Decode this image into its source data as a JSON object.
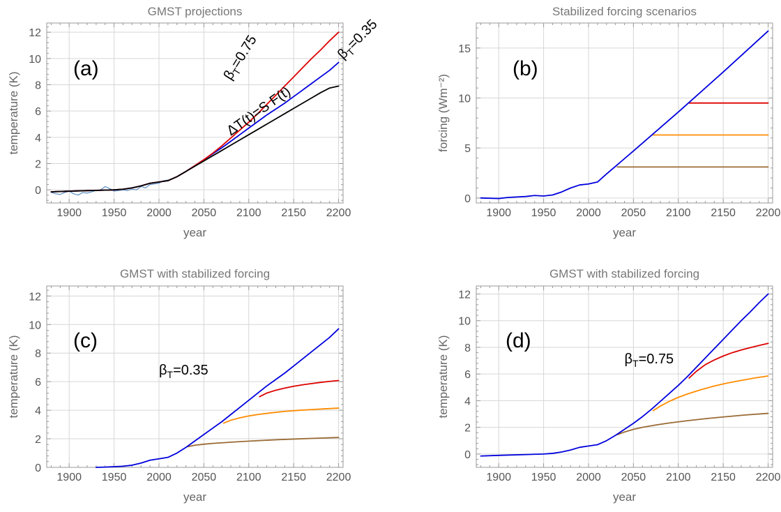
{
  "chart_data": [
    {
      "id": "a",
      "type": "line",
      "title": "GMST projections",
      "panel_label": "(a)",
      "xlabel": "year",
      "ylabel": "temperature (K)",
      "xlim": [
        1875,
        2205
      ],
      "ylim": [
        -1,
        12.7
      ],
      "xticks": [
        1900,
        1950,
        2000,
        2050,
        2100,
        2150,
        2200
      ],
      "yticks": [
        0,
        2,
        4,
        6,
        8,
        10,
        12
      ],
      "grid": true,
      "series": [
        {
          "id": "obs",
          "color": "#5b8fc4",
          "width": 1.2,
          "observed": true,
          "x": [
            1880,
            1885,
            1890,
            1895,
            1900,
            1905,
            1910,
            1915,
            1920,
            1925,
            1930,
            1935,
            1940,
            1945,
            1950,
            1955,
            1960,
            1965,
            1970,
            1975,
            1980,
            1985,
            1990,
            1995,
            2000,
            2005,
            2010
          ],
          "y": [
            -0.2,
            -0.3,
            -0.35,
            -0.2,
            -0.1,
            -0.3,
            -0.4,
            -0.2,
            -0.25,
            -0.15,
            -0.05,
            0.0,
            0.25,
            0.1,
            -0.1,
            -0.05,
            0.0,
            -0.05,
            0.05,
            0.0,
            0.25,
            0.15,
            0.4,
            0.45,
            0.5,
            0.7,
            0.75
          ]
        },
        {
          "id": "beta035",
          "color": "#0000dd",
          "width": 1.8,
          "x": [
            1880,
            1900,
            1950,
            1960,
            1970,
            1980,
            1990,
            2000,
            2010,
            2020,
            2030,
            2040,
            2050,
            2060,
            2070,
            2080,
            2090,
            2100,
            2110,
            2120,
            2130,
            2140,
            2150,
            2160,
            2170,
            2180,
            2190,
            2200
          ],
          "y": [
            -0.15,
            -0.1,
            0.0,
            0.05,
            0.15,
            0.3,
            0.5,
            0.6,
            0.7,
            1.0,
            1.4,
            1.85,
            2.3,
            2.75,
            3.2,
            3.7,
            4.2,
            4.7,
            5.2,
            5.7,
            6.15,
            6.6,
            7.1,
            7.6,
            8.1,
            8.6,
            9.1,
            9.7
          ]
        },
        {
          "id": "beta075",
          "color": "#dd0000",
          "width": 1.8,
          "x": [
            1880,
            1900,
            1950,
            1960,
            1970,
            1980,
            1990,
            2000,
            2010,
            2020,
            2030,
            2040,
            2050,
            2060,
            2070,
            2080,
            2090,
            2100,
            2110,
            2120,
            2130,
            2140,
            2150,
            2160,
            2170,
            2180,
            2190,
            2200
          ],
          "y": [
            -0.15,
            -0.1,
            0.0,
            0.05,
            0.15,
            0.3,
            0.5,
            0.6,
            0.7,
            1.0,
            1.4,
            1.85,
            2.3,
            2.8,
            3.35,
            3.95,
            4.55,
            5.15,
            5.8,
            6.5,
            7.2,
            7.9,
            8.6,
            9.3,
            10.0,
            10.65,
            11.35,
            12.0
          ]
        },
        {
          "id": "linear",
          "color": "#000000",
          "width": 1.8,
          "x": [
            1880,
            1900,
            1950,
            1960,
            1970,
            1980,
            1990,
            2000,
            2010,
            2020,
            2030,
            2040,
            2050,
            2060,
            2070,
            2080,
            2090,
            2100,
            2110,
            2120,
            2130,
            2140,
            2150,
            2160,
            2170,
            2180,
            2190,
            2200
          ],
          "y": [
            -0.15,
            -0.1,
            0.0,
            0.05,
            0.15,
            0.3,
            0.5,
            0.6,
            0.7,
            1.0,
            1.4,
            1.8,
            2.2,
            2.6,
            3.0,
            3.4,
            3.8,
            4.2,
            4.6,
            5.0,
            5.4,
            5.8,
            6.2,
            6.6,
            7.0,
            7.4,
            7.75,
            7.9
          ]
        }
      ],
      "annotations": [
        {
          "text": "β",
          "sub": "T",
          "rest": "=0.75",
          "x": 2080,
          "y": 8.3,
          "rotate": -58
        },
        {
          "text": "β",
          "sub": "T",
          "rest": "=0.35",
          "x": 2205,
          "y": 9.9,
          "rotate": -45
        },
        {
          "text": "ΔT(t)=S F(t)",
          "x": 2080,
          "y": 4.1,
          "rotate": -35
        }
      ]
    },
    {
      "id": "b",
      "type": "line",
      "title": "Stabilized forcing scenarios",
      "panel_label": "(b)",
      "xlabel": "year",
      "ylabel": "forcing (Wm⁻²)",
      "xlim": [
        1875,
        2205
      ],
      "ylim": [
        -0.5,
        17.5
      ],
      "xticks": [
        1900,
        1950,
        2000,
        2050,
        2100,
        2150,
        2200
      ],
      "yticks": [
        0,
        5,
        10,
        15
      ],
      "grid": true,
      "series": [
        {
          "id": "stab3",
          "color": "#9a6a33",
          "width": 1.8,
          "x": [
            2032,
            2200
          ],
          "y": [
            3.1,
            3.1
          ]
        },
        {
          "id": "stab6",
          "color": "#ff8c00",
          "width": 1.8,
          "x": [
            2072,
            2200
          ],
          "y": [
            6.3,
            6.3
          ]
        },
        {
          "id": "stab9",
          "color": "#dd0000",
          "width": 1.8,
          "x": [
            2112,
            2200
          ],
          "y": [
            9.5,
            9.5
          ]
        },
        {
          "id": "ramp",
          "color": "#0000dd",
          "width": 1.8,
          "x": [
            1880,
            1900,
            1910,
            1920,
            1930,
            1940,
            1950,
            1960,
            1970,
            1980,
            1990,
            2000,
            2010,
            2020,
            2050,
            2100,
            2150,
            2200
          ],
          "y": [
            0.0,
            -0.05,
            0.05,
            0.1,
            0.15,
            0.25,
            0.2,
            0.3,
            0.6,
            1.0,
            1.3,
            1.4,
            1.6,
            2.4,
            4.7,
            8.6,
            12.6,
            16.7
          ]
        }
      ]
    },
    {
      "id": "c",
      "type": "line",
      "title": "GMST with stabilized forcing",
      "panel_label": "(c)",
      "xlabel": "year",
      "ylabel": "temperature (K)",
      "xlim": [
        1875,
        2205
      ],
      "ylim": [
        0,
        12.7
      ],
      "xticks": [
        1900,
        1950,
        2000,
        2050,
        2100,
        2150,
        2200
      ],
      "yticks": [
        0,
        2,
        4,
        6,
        8,
        10,
        12
      ],
      "grid": true,
      "series": [
        {
          "id": "stab3",
          "color": "#9a6a33",
          "width": 1.8,
          "x": [
            2032,
            2040,
            2050,
            2060,
            2075,
            2090,
            2110,
            2130,
            2150,
            2175,
            2200
          ],
          "y": [
            1.45,
            1.55,
            1.62,
            1.68,
            1.74,
            1.8,
            1.87,
            1.93,
            1.98,
            2.04,
            2.09
          ]
        },
        {
          "id": "stab6",
          "color": "#ff8c00",
          "width": 1.8,
          "x": [
            2072,
            2080,
            2090,
            2100,
            2110,
            2125,
            2140,
            2155,
            2170,
            2185,
            2200
          ],
          "y": [
            3.1,
            3.3,
            3.47,
            3.6,
            3.7,
            3.82,
            3.92,
            3.99,
            4.05,
            4.1,
            4.15
          ]
        },
        {
          "id": "stab9",
          "color": "#dd0000",
          "width": 1.8,
          "x": [
            2112,
            2120,
            2130,
            2140,
            2150,
            2160,
            2170,
            2180,
            2190,
            2200
          ],
          "y": [
            4.95,
            5.2,
            5.4,
            5.55,
            5.68,
            5.78,
            5.87,
            5.95,
            6.02,
            6.08
          ]
        },
        {
          "id": "ramp",
          "color": "#0000dd",
          "width": 1.8,
          "x": [
            1930,
            1940,
            1950,
            1960,
            1970,
            1980,
            1990,
            2000,
            2010,
            2020,
            2030,
            2040,
            2050,
            2060,
            2070,
            2080,
            2090,
            2100,
            2110,
            2120,
            2130,
            2140,
            2150,
            2160,
            2170,
            2180,
            2190,
            2200
          ],
          "y": [
            0.0,
            0.02,
            0.05,
            0.08,
            0.15,
            0.3,
            0.5,
            0.6,
            0.7,
            1.0,
            1.4,
            1.85,
            2.3,
            2.75,
            3.2,
            3.7,
            4.2,
            4.7,
            5.2,
            5.7,
            6.15,
            6.6,
            7.1,
            7.6,
            8.1,
            8.6,
            9.1,
            9.7
          ]
        }
      ],
      "annotations": [
        {
          "text": "β",
          "sub": "T",
          "rest": "=0.35",
          "x": 2000,
          "y": 6.5,
          "rotate": 0
        }
      ]
    },
    {
      "id": "d",
      "type": "line",
      "title": "GMST with stabilized forcing",
      "panel_label": "(d)",
      "xlabel": "year",
      "ylabel": "temperature (K)",
      "xlim": [
        1875,
        2205
      ],
      "ylim": [
        -1,
        12.6
      ],
      "xticks": [
        1900,
        1950,
        2000,
        2050,
        2100,
        2150,
        2200
      ],
      "yticks": [
        0,
        2,
        4,
        6,
        8,
        10,
        12
      ],
      "grid": true,
      "series": [
        {
          "id": "stab3",
          "color": "#9a6a33",
          "width": 1.8,
          "x": [
            2032,
            2040,
            2050,
            2060,
            2075,
            2090,
            2110,
            2130,
            2150,
            2175,
            2200
          ],
          "y": [
            1.45,
            1.65,
            1.85,
            2.0,
            2.18,
            2.33,
            2.5,
            2.65,
            2.78,
            2.93,
            3.05
          ]
        },
        {
          "id": "stab6",
          "color": "#ff8c00",
          "width": 1.8,
          "x": [
            2072,
            2080,
            2090,
            2100,
            2110,
            2125,
            2140,
            2155,
            2170,
            2185,
            2200
          ],
          "y": [
            3.25,
            3.6,
            3.95,
            4.25,
            4.5,
            4.82,
            5.1,
            5.33,
            5.52,
            5.7,
            5.85
          ]
        },
        {
          "id": "stab9",
          "color": "#dd0000",
          "width": 1.8,
          "x": [
            2112,
            2120,
            2130,
            2140,
            2150,
            2160,
            2170,
            2180,
            2190,
            2200
          ],
          "y": [
            5.7,
            6.2,
            6.7,
            7.05,
            7.35,
            7.6,
            7.8,
            7.98,
            8.14,
            8.3
          ]
        },
        {
          "id": "ramp",
          "color": "#0000dd",
          "width": 1.8,
          "x": [
            1880,
            1900,
            1950,
            1960,
            1970,
            1980,
            1990,
            2000,
            2010,
            2020,
            2030,
            2040,
            2050,
            2060,
            2070,
            2080,
            2090,
            2100,
            2110,
            2120,
            2130,
            2140,
            2150,
            2160,
            2170,
            2180,
            2190,
            2200
          ],
          "y": [
            -0.15,
            -0.1,
            0.0,
            0.05,
            0.15,
            0.3,
            0.5,
            0.6,
            0.7,
            1.0,
            1.4,
            1.85,
            2.3,
            2.8,
            3.35,
            3.95,
            4.55,
            5.15,
            5.8,
            6.5,
            7.2,
            7.9,
            8.6,
            9.3,
            10.0,
            10.65,
            11.35,
            12.0
          ]
        }
      ],
      "annotations": [
        {
          "text": "β",
          "sub": "T",
          "rest": "=0.75",
          "x": 2040,
          "y": 6.8,
          "rotate": 0
        }
      ]
    }
  ]
}
